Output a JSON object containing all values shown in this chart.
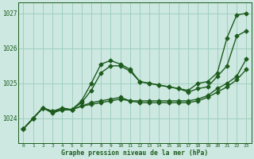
{
  "bg_color": "#cce8e0",
  "grid_color": "#99ccbb",
  "line_color": "#1e5c1e",
  "xlabel": "Graphe pression niveau de la mer (hPa)",
  "ylim": [
    1023.3,
    1027.3
  ],
  "xlim": [
    -0.5,
    23.5
  ],
  "yticks": [
    1024,
    1025,
    1026,
    1027
  ],
  "xticks": [
    0,
    1,
    2,
    3,
    4,
    5,
    6,
    7,
    8,
    9,
    10,
    11,
    12,
    13,
    14,
    15,
    16,
    17,
    18,
    19,
    20,
    21,
    22,
    23
  ],
  "series": [
    {
      "x": [
        0,
        1,
        2,
        3,
        4,
        5,
        6,
        7,
        8,
        9,
        10,
        11,
        12,
        13,
        14,
        15,
        16,
        17,
        18,
        19,
        20,
        21,
        22,
        23
      ],
      "y": [
        1023.7,
        1024.0,
        1024.3,
        1024.2,
        1024.3,
        1024.25,
        1024.5,
        1025.0,
        1025.55,
        1025.65,
        1025.55,
        1025.4,
        1025.05,
        1025.0,
        1024.95,
        1024.9,
        1024.85,
        1024.8,
        1025.0,
        1025.05,
        1025.3,
        1026.3,
        1026.95,
        1027.0
      ],
      "marker": "D",
      "markersize": 2.5,
      "linewidth": 1.0
    },
    {
      "x": [
        0,
        1,
        2,
        3,
        4,
        5,
        6,
        7,
        8,
        9,
        10,
        11,
        12,
        13,
        14,
        15,
        16,
        17,
        18,
        19,
        20,
        21,
        22,
        23
      ],
      "y": [
        1023.7,
        1024.0,
        1024.3,
        1024.2,
        1024.25,
        1024.25,
        1024.45,
        1024.8,
        1025.3,
        1025.5,
        1025.5,
        1025.35,
        1025.05,
        1025.0,
        1024.95,
        1024.9,
        1024.85,
        1024.75,
        1024.85,
        1024.9,
        1025.2,
        1025.5,
        1026.35,
        1026.5
      ],
      "marker": "D",
      "markersize": 2.5,
      "linewidth": 1.0
    },
    {
      "x": [
        0,
        1,
        2,
        3,
        4,
        5,
        6,
        7,
        8,
        9,
        10,
        11,
        12,
        13,
        14,
        15,
        16,
        17,
        18,
        19,
        20,
        21,
        22,
        23
      ],
      "y": [
        1023.7,
        1024.0,
        1024.3,
        1024.2,
        1024.25,
        1024.25,
        1024.35,
        1024.45,
        1024.5,
        1024.55,
        1024.6,
        1024.5,
        1024.5,
        1024.5,
        1024.5,
        1024.5,
        1024.5,
        1024.5,
        1024.55,
        1024.65,
        1024.85,
        1025.0,
        1025.2,
        1025.7
      ],
      "marker": "D",
      "markersize": 2.5,
      "linewidth": 1.0
    },
    {
      "x": [
        0,
        1,
        2,
        3,
        4,
        5,
        6,
        7,
        8,
        9,
        10,
        11,
        12,
        13,
        14,
        15,
        16,
        17,
        18,
        19,
        20,
        21,
        22,
        23
      ],
      "y": [
        1023.7,
        1024.0,
        1024.3,
        1024.15,
        1024.25,
        1024.25,
        1024.35,
        1024.4,
        1024.45,
        1024.5,
        1024.55,
        1024.5,
        1024.45,
        1024.45,
        1024.45,
        1024.45,
        1024.45,
        1024.45,
        1024.5,
        1024.6,
        1024.75,
        1024.9,
        1025.1,
        1025.4
      ],
      "marker": "D",
      "markersize": 2.5,
      "linewidth": 1.0
    }
  ]
}
